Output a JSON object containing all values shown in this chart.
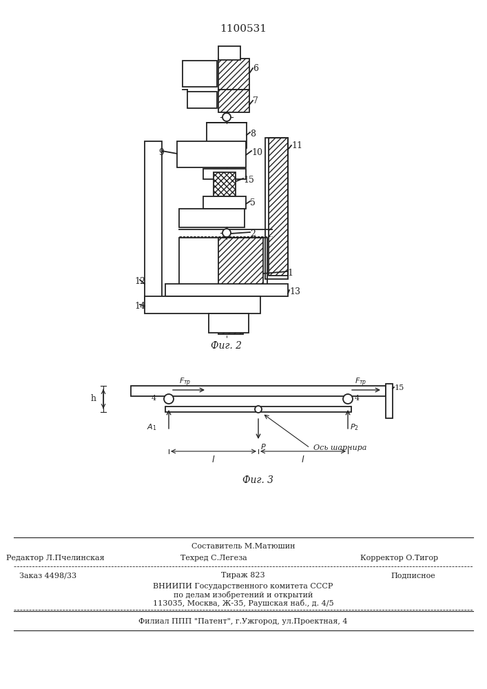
{
  "title": "1100531",
  "fig2_label": "Фиг. 2",
  "fig3_label": "Фиг. 3",
  "background_color": "#ffffff",
  "line_color": "#222222",
  "footer_sestavitel": "Составитель М.Матюшин",
  "footer_redaktor": "Редактор Л.Пчелинская",
  "footer_tehred": "Техред С.Легеза",
  "footer_korrektor": "Корректор О.Тигор",
  "footer_zakaz": "Заказ 4498/33",
  "footer_tirazh": "Тираж 823",
  "footer_podpisnoe": "Подписное",
  "footer_vniipil1": "ВНИИПИ Государственного комитета СССР",
  "footer_vniipil2": "по делам изобретений и открытий",
  "footer_vniipil3": "113035, Москва, Ж-35, Раушская наб., д. 4/5",
  "footer_filial": "Филиал ППП \"Патент\", г.Ужгород, ул.Проектная, 4"
}
